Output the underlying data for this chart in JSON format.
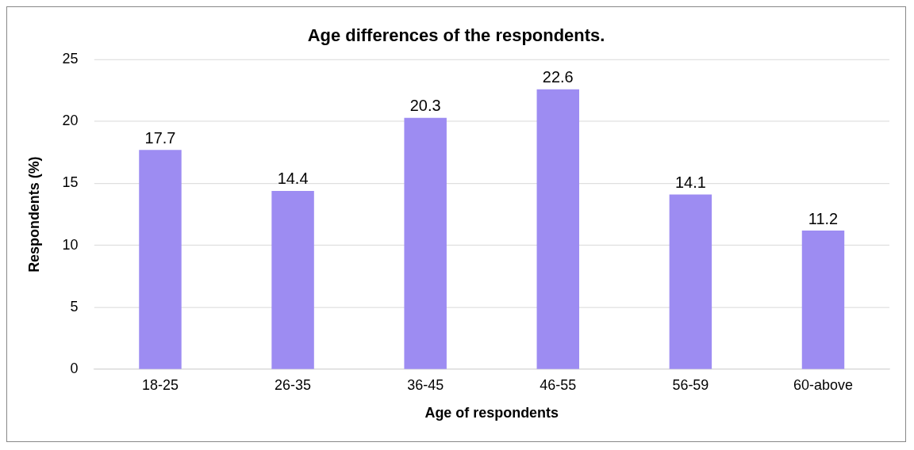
{
  "chart_data": {
    "type": "bar",
    "title": "Age differences of the respondents.",
    "xlabel": "Age of respondents",
    "ylabel": "Respondents (%)",
    "categories": [
      "18-25",
      "26-35",
      "36-45",
      "46-55",
      "56-59",
      "60-above"
    ],
    "values": [
      17.7,
      14.4,
      20.3,
      22.6,
      14.1,
      11.2
    ],
    "color": "#9d8cf2",
    "ylim": [
      0,
      25
    ],
    "yticks": [
      0,
      5,
      10,
      15,
      20,
      25
    ],
    "grid": "y",
    "data_labels": true,
    "legend": false
  }
}
